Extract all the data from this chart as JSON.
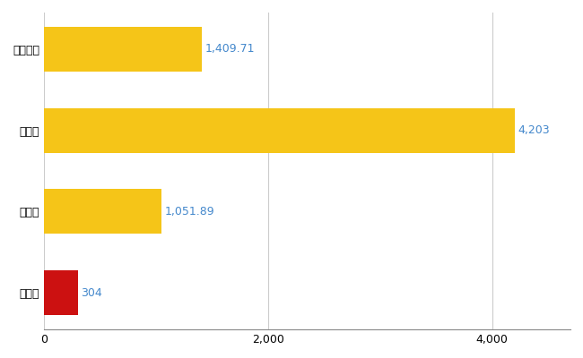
{
  "categories": [
    "全国平均",
    "県最大",
    "県平均",
    "大子町"
  ],
  "values": [
    1409.71,
    4203,
    1051.89,
    304
  ],
  "colors": [
    "#F5C518",
    "#F5C518",
    "#F5C518",
    "#CC1111"
  ],
  "labels": [
    "1,409.71",
    "4,203",
    "1,051.89",
    "304"
  ],
  "label_color": "#4488CC",
  "xlim": [
    0,
    4700
  ],
  "xticks": [
    0,
    2000,
    4000
  ],
  "background_color": "#FFFFFF",
  "grid_color": "#CCCCCC",
  "label_fontsize": 9,
  "tick_fontsize": 9,
  "bar_height": 0.55,
  "figsize": [
    6.5,
    4.0
  ],
  "dpi": 100
}
